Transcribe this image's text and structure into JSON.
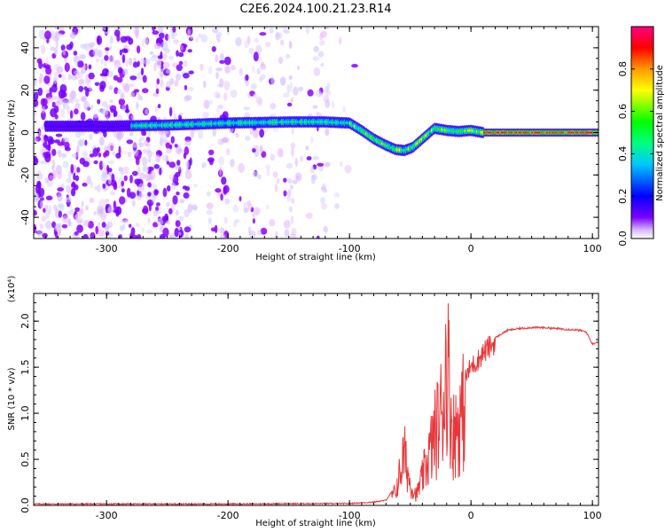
{
  "chart_data": [
    {
      "type": "heatmap",
      "title": "C2E6.2024.100.21.23.R14",
      "xlabel": "Height of straight line (km)",
      "ylabel": "Frequency (Hz)",
      "xlim": [
        -360,
        105
      ],
      "ylim": [
        -50,
        50
      ],
      "xticks": [
        -300,
        -200,
        -100,
        0,
        100
      ],
      "yticks": [
        -40,
        -20,
        0,
        20,
        40
      ],
      "colorbar": {
        "label": "Normalized spectral amplitude",
        "ticks": [
          "0.0",
          "0.2",
          "0.4",
          "0.6",
          "0.8"
        ],
        "range": [
          0,
          1
        ],
        "colors": [
          "#ffffff",
          "#7b00ff",
          "#0000ff",
          "#00ffff",
          "#00ff00",
          "#ffff00",
          "#ff9900",
          "#ff0000",
          "#ff0080"
        ]
      },
      "ridge": {
        "x": [
          -350,
          -300,
          -250,
          -200,
          -150,
          -120,
          -100,
          -90,
          -80,
          -70,
          -62,
          -55,
          -48,
          -40,
          -34,
          -30,
          -20,
          -10,
          0,
          10,
          50,
          105
        ],
        "y": [
          3,
          3,
          3.5,
          4.5,
          5,
          5,
          4.5,
          1,
          -3,
          -6,
          -8,
          -8.5,
          -7,
          -3,
          0,
          2,
          1,
          0.5,
          1,
          0,
          0,
          0
        ]
      }
    },
    {
      "type": "line",
      "xlabel": "Height of straight line (km)",
      "ylabel": "SNR (10 * v/v)",
      "scale_label": "(x10⁴)",
      "xlim": [
        -360,
        105
      ],
      "ylim": [
        0,
        2.3
      ],
      "xticks": [
        -300,
        -200,
        -100,
        0,
        100
      ],
      "yticks": [
        "0.0",
        "0.5",
        "1.0",
        "1.5",
        "2.0"
      ],
      "series": [
        {
          "color": "#e8373a",
          "x": [
            -360,
            -300,
            -200,
            -100,
            -80,
            -70,
            -62,
            -58,
            -55,
            -50,
            -45,
            -40,
            -35,
            -30,
            -25,
            -22,
            -20,
            -15,
            -10,
            -5,
            0,
            5,
            10,
            20,
            30,
            40,
            50,
            60,
            70,
            80,
            90,
            95,
            100,
            105
          ],
          "y": [
            0.01,
            0.01,
            0.01,
            0.015,
            0.03,
            0.05,
            0.2,
            0.5,
            0.75,
            0.3,
            0.15,
            0.4,
            0.7,
            1.0,
            1.3,
            1.6,
            2.2,
            1.0,
            1.2,
            1.4,
            1.55,
            1.6,
            1.7,
            1.82,
            1.9,
            1.92,
            1.93,
            1.93,
            1.92,
            1.91,
            1.9,
            1.88,
            1.75,
            1.78
          ]
        }
      ]
    }
  ]
}
